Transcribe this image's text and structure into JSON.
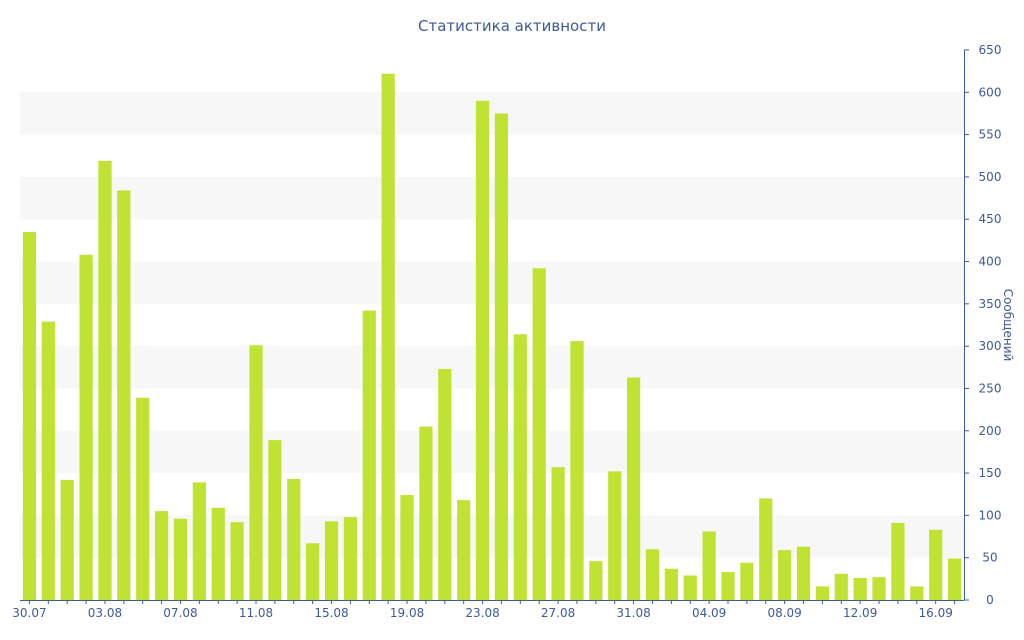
{
  "chart_data": {
    "type": "bar",
    "title": "Статистика активности",
    "xlabel": "",
    "ylabel": "Сообщений",
    "ylim": [
      0,
      650
    ],
    "yticks": [
      0,
      50,
      100,
      150,
      200,
      250,
      300,
      350,
      400,
      450,
      500,
      550,
      600,
      650
    ],
    "y_axis_side": "right",
    "grid": "alternating horizontal bands",
    "legend": "none",
    "bar_color": "#bfe233",
    "text_color": "#3d5a99",
    "band_color": "#f7f7f7",
    "categories": [
      "30.07",
      "31.07",
      "01.08",
      "02.08",
      "03.08",
      "04.08",
      "05.08",
      "06.08",
      "07.08",
      "08.08",
      "09.08",
      "10.08",
      "11.08",
      "12.08",
      "13.08",
      "14.08",
      "15.08",
      "16.08",
      "17.08",
      "18.08",
      "19.08",
      "20.08",
      "21.08",
      "22.08",
      "23.08",
      "24.08",
      "25.08",
      "26.08",
      "27.08",
      "28.08",
      "29.08",
      "30.08",
      "31.08",
      "01.09",
      "02.09",
      "03.09",
      "04.09",
      "05.09",
      "06.09",
      "07.09",
      "08.09",
      "09.09",
      "10.09",
      "11.09",
      "12.09",
      "13.09",
      "14.09",
      "15.09",
      "16.09",
      "17.09"
    ],
    "xtick_labels": [
      "30.07",
      "03.08",
      "07.08",
      "11.08",
      "15.08",
      "19.08",
      "23.08",
      "27.08",
      "31.08",
      "04.09",
      "08.09",
      "12.09",
      "16.09"
    ],
    "series": [
      {
        "values": [
          435,
          329,
          142,
          408,
          519,
          484,
          239,
          105,
          96,
          139,
          109,
          92,
          301,
          189,
          143,
          67,
          93,
          98,
          342,
          622,
          124,
          205,
          273,
          118,
          590,
          575,
          314,
          392,
          157,
          306,
          46,
          152,
          263,
          60,
          37,
          29,
          81,
          33,
          44,
          120,
          59,
          63,
          16,
          31,
          26,
          27,
          91,
          16,
          83,
          49
        ]
      }
    ]
  }
}
